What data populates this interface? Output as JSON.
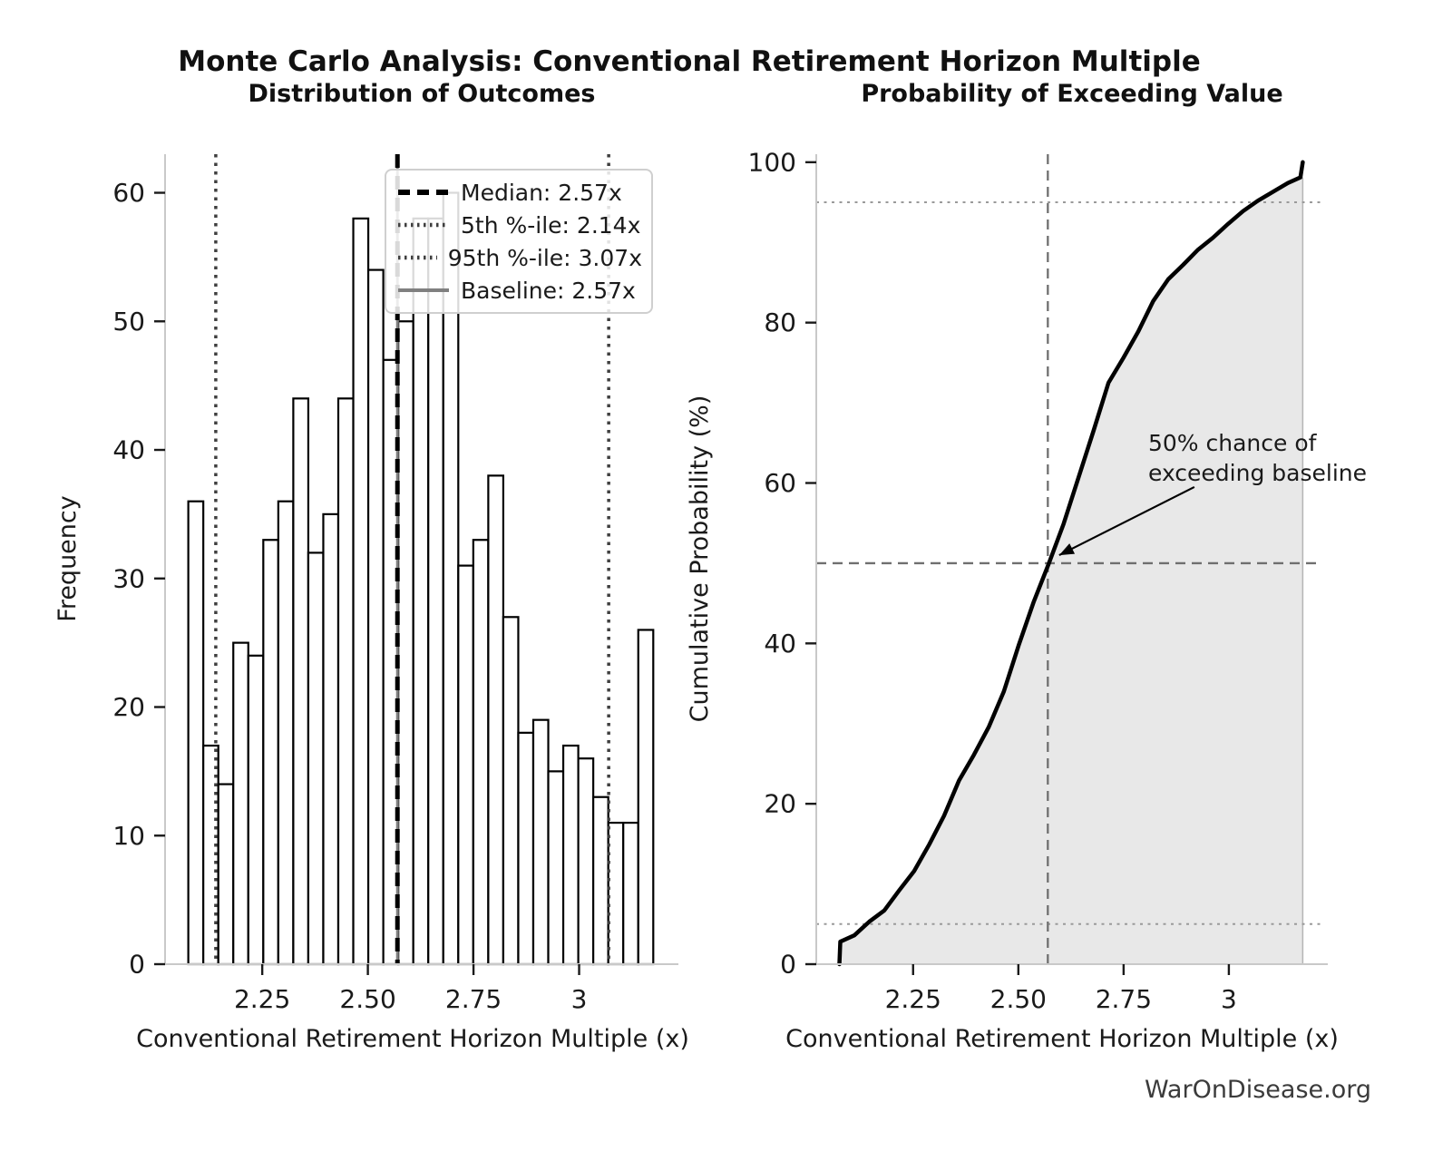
{
  "figure": {
    "title": "Monte Carlo Analysis: Conventional Retirement Horizon Multiple",
    "watermark": "WarOnDisease.org"
  },
  "colors": {
    "bar_fill": "#ffffff",
    "bar_edge": "#000000",
    "median_line": "#000000",
    "percentile_line": "#3f3f3f",
    "baseline_line": "#808080",
    "cdf_line": "#000000",
    "cdf_fill": "#000000",
    "cdf_fill_opacity": 0.09,
    "crosshair": "#6f6f6f",
    "dotted_guide": "#9a9a9a",
    "spine": "#c9c9c9",
    "tick": "#1a1a1a"
  },
  "chart_data": [
    {
      "type": "bar",
      "subtype": "histogram",
      "title": "Distribution of Outcomes",
      "xlabel": "Conventional Retirement Horizon Multiple (x)",
      "ylabel": "Frequency",
      "n_samples": 1000,
      "bin_start": 2.075,
      "bin_width": 0.0355,
      "values": [
        36,
        17,
        14,
        25,
        24,
        33,
        36,
        44,
        32,
        35,
        44,
        58,
        54,
        47,
        50,
        58,
        58,
        60,
        31,
        33,
        38,
        27,
        18,
        19,
        15,
        17,
        16,
        13,
        11,
        11,
        26
      ],
      "xlim": [
        2.02,
        3.235
      ],
      "ylim": [
        0,
        63
      ],
      "xtick_values": [
        2.25,
        2.5,
        2.75,
        3
      ],
      "xtick_labels": [
        "2.25",
        "2.50",
        "2.75",
        "3"
      ],
      "ytick_values": [
        0,
        10,
        20,
        30,
        40,
        50,
        60
      ],
      "grid": false,
      "legend_position": "upper right",
      "vlines": [
        {
          "label": "Median: 2.57x",
          "x": 2.57,
          "style": "dashed",
          "color": "#000000",
          "width": 5
        },
        {
          "label": "5th %-ile: 2.14x",
          "x": 2.14,
          "style": "dotted",
          "color": "#3f3f3f",
          "width": 3.5
        },
        {
          "label": "95th %-ile: 3.07x",
          "x": 3.07,
          "style": "dotted",
          "color": "#3f3f3f",
          "width": 3.5
        },
        {
          "label": "Baseline: 2.57x",
          "x": 2.57,
          "style": "solid",
          "color": "#808080",
          "width": 3
        }
      ]
    },
    {
      "type": "line",
      "subtype": "empirical-cdf",
      "title": "Probability of Exceeding Value",
      "xlabel": "Conventional Retirement Horizon Multiple (x)",
      "ylabel": "Cumulative Probability (%)",
      "x": [
        2.075,
        2.077,
        2.1105,
        2.146,
        2.1815,
        2.217,
        2.2525,
        2.288,
        2.3235,
        2.359,
        2.3945,
        2.43,
        2.4655,
        2.501,
        2.5365,
        2.572,
        2.6075,
        2.643,
        2.6785,
        2.714,
        2.7495,
        2.785,
        2.8205,
        2.856,
        2.8915,
        2.927,
        2.9625,
        2.998,
        3.0335,
        3.069,
        3.1045,
        3.14,
        3.17,
        3.1755
      ],
      "y": [
        0,
        2.8,
        3.6,
        5.3,
        6.7,
        9.2,
        11.6,
        14.9,
        18.5,
        22.9,
        26.1,
        29.6,
        34.0,
        39.8,
        45.2,
        49.9,
        54.9,
        60.7,
        66.5,
        72.5,
        75.6,
        78.9,
        82.7,
        85.4,
        87.2,
        89.1,
        90.6,
        92.3,
        93.9,
        95.2,
        96.3,
        97.4,
        98.1,
        100
      ],
      "xlim": [
        2.02,
        3.235
      ],
      "ylim": [
        0,
        101
      ],
      "xtick_values": [
        2.25,
        2.5,
        2.75,
        3
      ],
      "xtick_labels": [
        "2.25",
        "2.50",
        "2.75",
        "3"
      ],
      "ytick_values": [
        0,
        20,
        40,
        60,
        80,
        100
      ],
      "fill_under_curve": true,
      "hlines": [
        {
          "y": 5,
          "style": "dotted"
        },
        {
          "y": 95,
          "style": "dotted"
        },
        {
          "y": 50,
          "style": "dashed"
        }
      ],
      "vlines": [
        {
          "x": 2.57,
          "style": "dashed"
        }
      ],
      "annotation": {
        "text_line1": "50% chance of",
        "text_line2": "exceeding baseline",
        "text_x": 2.82,
        "text_y": 66,
        "arrow_from_x": 2.918,
        "arrow_from_y": 59.5,
        "arrow_to_x": 2.597,
        "arrow_to_y": 51.0
      }
    }
  ]
}
